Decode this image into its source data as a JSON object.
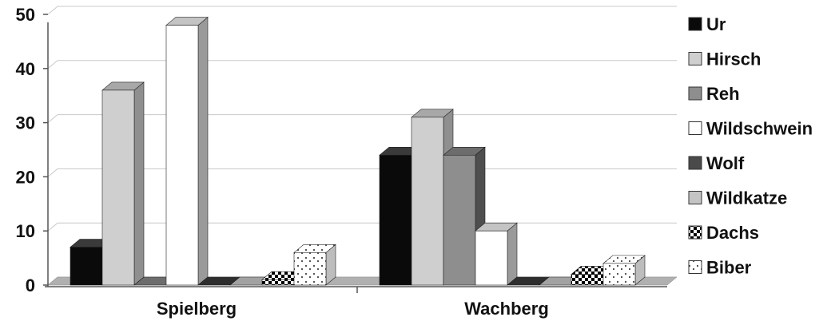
{
  "chart_data": {
    "type": "bar",
    "title": "",
    "xlabel": "",
    "ylabel": "",
    "ylim": [
      0,
      50
    ],
    "yticks": [
      "0",
      "10",
      "20",
      "30",
      "40",
      "50"
    ],
    "grid": true,
    "legend_position": "right",
    "categories": [
      "Spielberg",
      "Wachberg"
    ],
    "series": [
      {
        "name": "Ur",
        "values": [
          7,
          24
        ],
        "fill": "#0a0a0a",
        "side": "#000000",
        "top": "#3a3a3a",
        "pattern": "none"
      },
      {
        "name": "Hirsch",
        "values": [
          36,
          31
        ],
        "fill": "#cfcfcf",
        "side": "#8f8f8f",
        "top": "#a8a8a8",
        "pattern": "none"
      },
      {
        "name": "Reh",
        "values": [
          0,
          24
        ],
        "fill": "#8e8e8e",
        "side": "#4e4e4e",
        "top": "#6d6d6d",
        "pattern": "none"
      },
      {
        "name": "Wildschwein",
        "values": [
          48,
          10
        ],
        "fill": "#ffffff",
        "side": "#9a9a9a",
        "top": "#c4c4c4",
        "pattern": "none"
      },
      {
        "name": "Wolf",
        "values": [
          0,
          0
        ],
        "fill": "#4a4a4a",
        "side": "#1c1c1c",
        "top": "#2e2e2e",
        "pattern": "none"
      },
      {
        "name": "Wildkatze",
        "values": [
          0,
          0
        ],
        "fill": "#c4c4c4",
        "side": "#8a8a8a",
        "top": "#a2a2a2",
        "pattern": "none"
      },
      {
        "name": "Dachs",
        "values": [
          1,
          2
        ],
        "fill": "#000000",
        "side": "#333333",
        "top": "#555555",
        "pattern": "checker"
      },
      {
        "name": "Biber",
        "values": [
          6,
          4
        ],
        "fill": "#ffffff",
        "side": "#bdbdbd",
        "top": "#dddddd",
        "pattern": "dots"
      }
    ]
  }
}
